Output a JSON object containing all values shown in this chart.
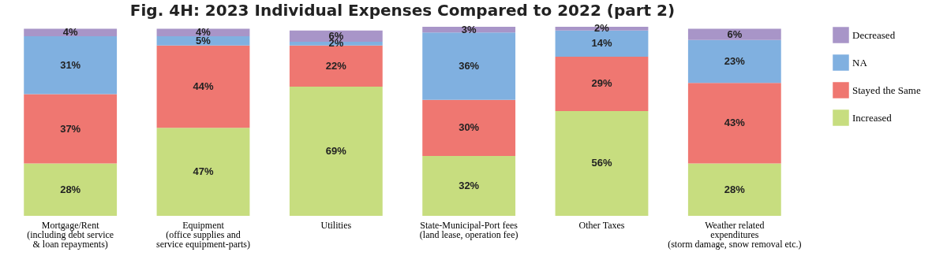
{
  "chart_data": {
    "type": "bar",
    "stacked": true,
    "title": "Fig. 4H: 2023 Individual Expenses Compared to 2022 (part 2)",
    "categories": [
      "Mortgage/Rent\n(including debt service\n& loan repayments)",
      "Equipment\n(office supplies and\nservice equipment-parts)",
      "Utilities",
      "State-Municipal-Port fees\n(land lease, operation fee)",
      "Other Taxes",
      "Weather related\nexpenditures\n(storm damage, snow removal etc.)"
    ],
    "series": [
      {
        "name": "Increased",
        "color": "#c7dd7f",
        "values": [
          28,
          47,
          69,
          32,
          56,
          28
        ],
        "value_labels": [
          "28%",
          "47%",
          "69%",
          "32%",
          "56%",
          "28%"
        ]
      },
      {
        "name": "Stayed the Same",
        "color": "#ef7771",
        "values": [
          37,
          44,
          22,
          30,
          29,
          43
        ],
        "value_labels": [
          "37%",
          "44%",
          "22%",
          "30%",
          "29%",
          "43%"
        ]
      },
      {
        "name": "NA",
        "color": "#80b0e0",
        "values": [
          31,
          5,
          2,
          36,
          14,
          23
        ],
        "value_labels": [
          "31%",
          "5%",
          "2%",
          "36%",
          "14%",
          "23%"
        ]
      },
      {
        "name": "Decreased",
        "color": "#a895c8",
        "values": [
          4,
          4,
          6,
          3,
          2,
          6
        ],
        "value_labels": [
          "4%",
          "4%",
          "6%",
          "3%",
          "2%",
          "6%"
        ]
      }
    ],
    "legend": "right",
    "grid": false
  }
}
